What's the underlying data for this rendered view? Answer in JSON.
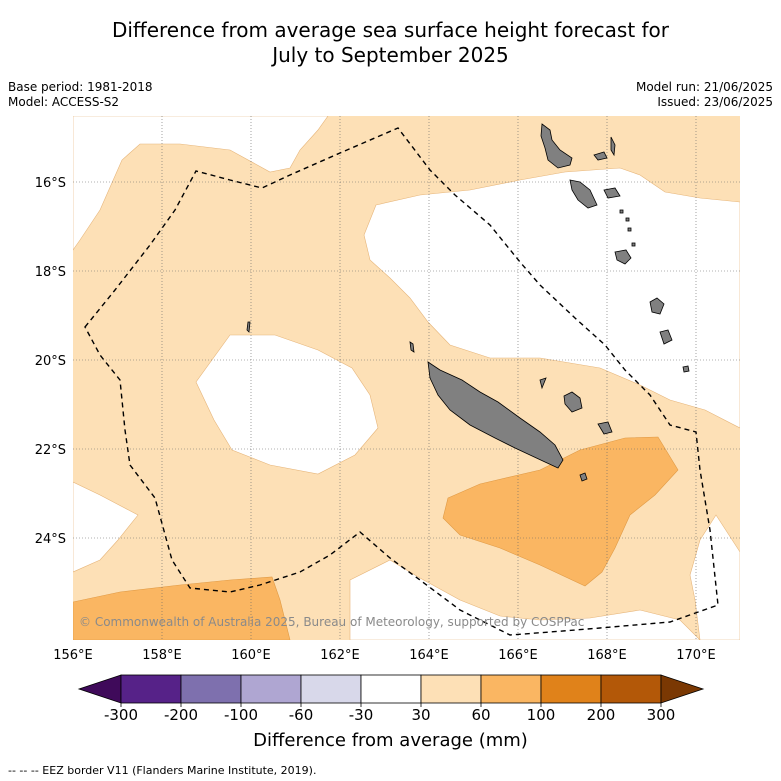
{
  "title": {
    "line1": "Difference from average sea surface height forecast for",
    "line2": "July to September 2025"
  },
  "meta": {
    "base_period": "Base period: 1981-2018",
    "model": "Model: ACCESS-S2",
    "model_run": "Model run: 21/06/2025",
    "issued": "Issued: 23/06/2025"
  },
  "map": {
    "lat_labels": [
      "16°S",
      "18°S",
      "20°S",
      "22°S",
      "24°S"
    ],
    "lon_labels": [
      "156°E",
      "158°E",
      "160°E",
      "162°E",
      "164°E",
      "166°E",
      "168°E",
      "170°E"
    ],
    "copyright": "© Commonwealth of Australia 2025, Bureau of Meteorology, supported by COSPPac",
    "land_color": "#808080",
    "eez_line_style": "dashed black"
  },
  "colorbar": {
    "ticks": [
      "-300",
      "-200",
      "-100",
      "-60",
      "-30",
      "30",
      "60",
      "100",
      "200",
      "300"
    ],
    "colors": [
      "#3f0a5a",
      "#562288",
      "#7e70ae",
      "#afa6d2",
      "#d8d8ea",
      "#ffffff",
      "#fde0b6",
      "#fab662",
      "#e0821a",
      "#b35808",
      "#7a3803"
    ],
    "label": "Difference from average (mm)"
  },
  "footnote": "--  --  -- EEZ border V11 (Flanders Marine Institute, 2019)."
}
